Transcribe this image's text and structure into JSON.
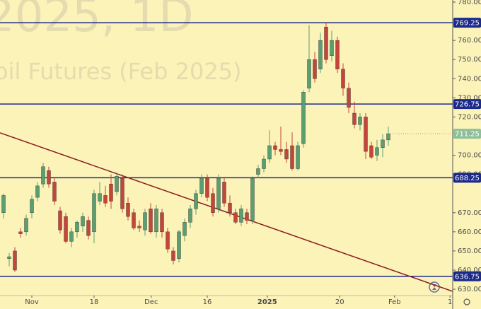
{
  "chart_data": {
    "type": "candlestick",
    "watermark_title": "2025, 1D",
    "watermark_subtitle": "oil Futures (Feb 2025)",
    "x": [
      0,
      1,
      2,
      3,
      4,
      5,
      6,
      7,
      8,
      9,
      10,
      11,
      12,
      13,
      14,
      15,
      16,
      17,
      18,
      19,
      20,
      21,
      22,
      23,
      24,
      25,
      26,
      27,
      28,
      29,
      30,
      31,
      32,
      33,
      34,
      35,
      36,
      37,
      38,
      39,
      40,
      41,
      42,
      43,
      44,
      45,
      46,
      47,
      48,
      49,
      50,
      51,
      52,
      53,
      54,
      55,
      56,
      57,
      58,
      59,
      60,
      61,
      62,
      63,
      64,
      65,
      66,
      67,
      68
    ],
    "open": [
      670,
      646,
      650,
      660,
      660,
      670,
      678,
      685,
      692,
      686,
      671,
      668,
      655,
      660,
      663,
      666,
      660,
      676,
      679,
      685,
      681,
      688,
      675,
      670,
      663,
      661,
      672,
      660,
      670,
      660,
      650,
      646,
      658,
      665,
      672,
      680,
      688,
      680,
      672,
      686,
      675,
      670,
      665,
      670,
      666,
      690,
      693,
      698,
      705,
      703,
      703,
      705,
      693,
      706,
      735,
      750,
      745,
      767,
      752,
      760,
      745,
      735,
      722,
      716,
      720,
      705,
      700,
      704,
      708
    ],
    "high": [
      680,
      649,
      652,
      662,
      669,
      679,
      686,
      696,
      694,
      688,
      673,
      670,
      662,
      666,
      670,
      668,
      682,
      686,
      684,
      690,
      691,
      690,
      678,
      672,
      666,
      672,
      675,
      674,
      672,
      662,
      652,
      661,
      667,
      674,
      682,
      690,
      690,
      683,
      690,
      688,
      679,
      672,
      674,
      672,
      689,
      695,
      700,
      713,
      707,
      715,
      707,
      712,
      707,
      734,
      768,
      754,
      764,
      769,
      765,
      762,
      748,
      738,
      728,
      722,
      722,
      707,
      708,
      711,
      715
    ],
    "low": [
      667,
      642,
      639,
      657,
      658,
      667,
      676,
      683,
      683,
      674,
      659,
      654,
      652,
      657,
      660,
      656,
      654,
      674,
      673,
      672,
      679,
      670,
      666,
      661,
      660,
      658,
      659,
      657,
      657,
      649,
      643,
      644,
      655,
      662,
      669,
      678,
      676,
      668,
      670,
      673,
      668,
      664,
      663,
      664,
      664,
      688,
      691,
      696,
      700,
      700,
      696,
      692,
      692,
      704,
      733,
      738,
      743,
      748,
      749,
      743,
      731,
      722,
      714,
      713,
      698,
      698,
      697,
      699,
      705
    ],
    "close": [
      679,
      647,
      640,
      659,
      667,
      677,
      684,
      694,
      685,
      676,
      661,
      655,
      660,
      665,
      668,
      658,
      680,
      680,
      675,
      676,
      689,
      672,
      668,
      662,
      662,
      670,
      660,
      672,
      660,
      651,
      645,
      660,
      665,
      672,
      680,
      688,
      678,
      670,
      688,
      675,
      670,
      665,
      672,
      666,
      688,
      693,
      698,
      705,
      703,
      702,
      698,
      693,
      705,
      733,
      750,
      740,
      760,
      750,
      760,
      745,
      735,
      725,
      716,
      720,
      702,
      699,
      704,
      708,
      711.25
    ],
    "up_color": "#5a9e72",
    "down_color": "#c4463a",
    "xlim": [
      -0.625,
      79.375
    ],
    "xticks": [
      {
        "value": 5,
        "label": "Nov"
      },
      {
        "value": 16,
        "label": "18"
      },
      {
        "value": 26.1,
        "label": "Dec"
      },
      {
        "value": 36,
        "label": "16"
      },
      {
        "value": 46.6,
        "label": "2025"
      },
      {
        "value": 59.4,
        "label": "20"
      },
      {
        "value": 69.1,
        "label": "Feb"
      },
      {
        "value": 78.9,
        "label": "1"
      }
    ],
    "ylim": [
      626.7,
      781.1
    ],
    "yticks": [
      {
        "value": 630,
        "label": "630.00"
      },
      {
        "value": 640,
        "label": "640.00"
      },
      {
        "value": 650,
        "label": "650.00"
      },
      {
        "value": 660,
        "label": "660.00"
      },
      {
        "value": 670,
        "label": "670.00"
      },
      {
        "value": 690,
        "label": "690.00"
      },
      {
        "value": 700,
        "label": "700.00"
      },
      {
        "value": 720,
        "label": "720.00"
      },
      {
        "value": 730,
        "label": "730.00"
      },
      {
        "value": 740,
        "label": "740.00"
      },
      {
        "value": 750,
        "label": "750.00"
      },
      {
        "value": 760,
        "label": "760.00"
      },
      {
        "value": 780,
        "label": "780.00"
      }
    ],
    "grid": false,
    "levels": [
      769.25,
      726.75,
      688.25,
      636.75
    ],
    "level_color": "#1c2a8a",
    "last_price_color": "#8fbf9a",
    "trendline": {
      "color": "#8b1e1e",
      "x": [
        -0.625,
        79.375
      ],
      "y": [
        711.7,
        628.9
      ]
    }
  }
}
